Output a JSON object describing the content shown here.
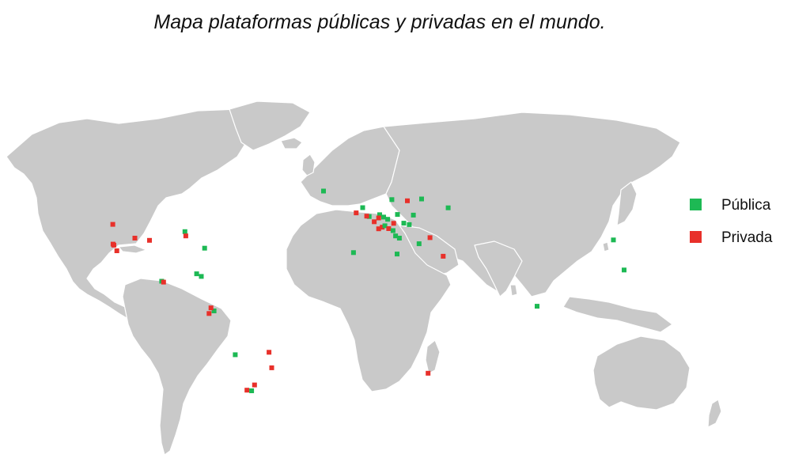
{
  "title": "Mapa plataformas públicas y privadas en el mundo.",
  "legend": [
    {
      "label": "Pública",
      "color": "#1db954"
    },
    {
      "label": "Privada",
      "color": "#e8302a"
    }
  ],
  "colors": {
    "land": "#c9c9c9",
    "public": "#1db954",
    "private": "#e8302a"
  },
  "markers": [
    {
      "type": "public",
      "lon": -21.9,
      "lat": 64.1
    },
    {
      "type": "public",
      "lon": -88.0,
      "lat": 44.0
    },
    {
      "type": "private",
      "lon": -87.6,
      "lat": 41.9
    },
    {
      "type": "public",
      "lon": -78.6,
      "lat": 35.8
    },
    {
      "type": "private",
      "lon": -122.4,
      "lat": 47.6
    },
    {
      "type": "private",
      "lon": -122.3,
      "lat": 37.8
    },
    {
      "type": "private",
      "lon": -121.9,
      "lat": 37.3
    },
    {
      "type": "private",
      "lon": -120.5,
      "lat": 34.5
    },
    {
      "type": "private",
      "lon": -111.9,
      "lat": 40.8
    },
    {
      "type": "private",
      "lon": -104.9,
      "lat": 39.7
    },
    {
      "type": "public",
      "lon": -99.1,
      "lat": 19.4
    },
    {
      "type": "private",
      "lon": -98.2,
      "lat": 19.0
    },
    {
      "type": "public",
      "lon": -82.4,
      "lat": 23.1
    },
    {
      "type": "public",
      "lon": -80.2,
      "lat": 21.8
    },
    {
      "type": "public",
      "lon": -74.1,
      "lat": 4.7
    },
    {
      "type": "private",
      "lon": -75.6,
      "lat": 6.2
    },
    {
      "type": "private",
      "lon": -76.5,
      "lat": 3.4
    },
    {
      "type": "public",
      "lon": -64.0,
      "lat": -17.0
    },
    {
      "type": "private",
      "lon": -47.9,
      "lat": -15.8
    },
    {
      "type": "private",
      "lon": -46.6,
      "lat": -23.5
    },
    {
      "type": "private",
      "lon": -58.4,
      "lat": -34.6
    },
    {
      "type": "public",
      "lon": -56.2,
      "lat": -34.9
    },
    {
      "type": "private",
      "lon": -54.8,
      "lat": -32.0
    },
    {
      "type": "public",
      "lon": -3.2,
      "lat": 55.9
    },
    {
      "type": "private",
      "lon": -6.3,
      "lat": 53.3
    },
    {
      "type": "public",
      "lon": -0.1,
      "lat": 51.5
    },
    {
      "type": "private",
      "lon": -1.3,
      "lat": 51.7
    },
    {
      "type": "private",
      "lon": 2.3,
      "lat": 48.9
    },
    {
      "type": "private",
      "lon": 4.4,
      "lat": 45.4
    },
    {
      "type": "private",
      "lon": 6.1,
      "lat": 46.2
    },
    {
      "type": "public",
      "lon": 7.4,
      "lat": 46.9
    },
    {
      "type": "public",
      "lon": 4.9,
      "lat": 52.4
    },
    {
      "type": "private",
      "lon": 4.4,
      "lat": 50.8
    },
    {
      "type": "public",
      "lon": 6.8,
      "lat": 51.2
    },
    {
      "type": "public",
      "lon": 8.7,
      "lat": 50.1
    },
    {
      "type": "private",
      "lon": 11.6,
      "lat": 48.1
    },
    {
      "type": "public",
      "lon": 13.4,
      "lat": 52.5
    },
    {
      "type": "private",
      "lon": 9.2,
      "lat": 45.5
    },
    {
      "type": "public",
      "lon": 11.3,
      "lat": 44.5
    },
    {
      "type": "public",
      "lon": 12.5,
      "lat": 41.9
    },
    {
      "type": "public",
      "lon": 14.3,
      "lat": 40.8
    },
    {
      "type": "public",
      "lon": 16.4,
      "lat": 48.2
    },
    {
      "type": "public",
      "lon": 10.7,
      "lat": 59.9
    },
    {
      "type": "private",
      "lon": 18.1,
      "lat": 59.3
    },
    {
      "type": "public",
      "lon": 24.9,
      "lat": 60.2
    },
    {
      "type": "public",
      "lon": 21.0,
      "lat": 52.2
    },
    {
      "type": "public",
      "lon": 19.0,
      "lat": 47.5
    },
    {
      "type": "public",
      "lon": 23.7,
      "lat": 38.0
    },
    {
      "type": "private",
      "lon": 28.9,
      "lat": 41.0
    },
    {
      "type": "public",
      "lon": 37.6,
      "lat": 55.8
    },
    {
      "type": "public",
      "lon": -7.6,
      "lat": 33.6
    },
    {
      "type": "public",
      "lon": 13.2,
      "lat": 32.9
    },
    {
      "type": "private",
      "lon": 35.2,
      "lat": 31.8
    },
    {
      "type": "public",
      "lon": 116.4,
      "lat": 39.9
    },
    {
      "type": "public",
      "lon": 121.5,
      "lat": 25.0
    },
    {
      "type": "public",
      "lon": 80.0,
      "lat": 7.0
    },
    {
      "type": "private",
      "lon": 28.0,
      "lat": -26.2
    }
  ]
}
